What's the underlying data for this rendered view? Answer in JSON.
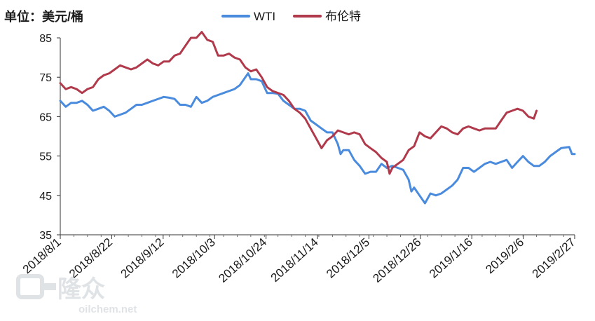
{
  "chart_data": {
    "type": "line",
    "unit_label": "单位：美元/桶",
    "x_tick_labels": [
      "2018/8/1",
      "2018/8/22",
      "2018/9/12",
      "2018/10/3",
      "2018/10/24",
      "2018/11/14",
      "2018/12/5",
      "2018/12/26",
      "2019/1/16",
      "2019/2/6",
      "2019/2/27"
    ],
    "y_ticks": [
      35,
      45,
      55,
      65,
      75,
      85
    ],
    "ylim": [
      35,
      85
    ],
    "grid": false,
    "legend_position": "top",
    "series": [
      {
        "name": "WTI",
        "color": "#4a8bdd",
        "points": [
          [
            0,
            69
          ],
          [
            2,
            67.5
          ],
          [
            4,
            68.5
          ],
          [
            6,
            68.5
          ],
          [
            8,
            69
          ],
          [
            10,
            68
          ],
          [
            12,
            66.5
          ],
          [
            14,
            67
          ],
          [
            16,
            67.5
          ],
          [
            18,
            66.5
          ],
          [
            20,
            65
          ],
          [
            22,
            65.5
          ],
          [
            24,
            66
          ],
          [
            26,
            67
          ],
          [
            28,
            68
          ],
          [
            30,
            68
          ],
          [
            32,
            68.5
          ],
          [
            34,
            69
          ],
          [
            36,
            69.5
          ],
          [
            38,
            70
          ],
          [
            40,
            69.8
          ],
          [
            42,
            69.5
          ],
          [
            44,
            68
          ],
          [
            46,
            68
          ],
          [
            48,
            67.5
          ],
          [
            50,
            70
          ],
          [
            52,
            68.5
          ],
          [
            54,
            69
          ],
          [
            56,
            70
          ],
          [
            58,
            70.5
          ],
          [
            60,
            71
          ],
          [
            62,
            71.5
          ],
          [
            64,
            72
          ],
          [
            66,
            73
          ],
          [
            68,
            75
          ],
          [
            69,
            76
          ],
          [
            70,
            74.5
          ],
          [
            72,
            74.5
          ],
          [
            74,
            74
          ],
          [
            76,
            71
          ],
          [
            78,
            71
          ],
          [
            80,
            70.8
          ],
          [
            82,
            69
          ],
          [
            84,
            68
          ],
          [
            86,
            67
          ],
          [
            88,
            67
          ],
          [
            90,
            66.5
          ],
          [
            92,
            64
          ],
          [
            94,
            63
          ],
          [
            96,
            62
          ],
          [
            98,
            61
          ],
          [
            100,
            61
          ],
          [
            102,
            58
          ],
          [
            103,
            55.5
          ],
          [
            104,
            56.5
          ],
          [
            106,
            56.5
          ],
          [
            108,
            54
          ],
          [
            110,
            52.5
          ],
          [
            112,
            50.5
          ],
          [
            114,
            51
          ],
          [
            116,
            51
          ],
          [
            118,
            53
          ],
          [
            120,
            52
          ],
          [
            122,
            52.5
          ],
          [
            124,
            52
          ],
          [
            126,
            51.5
          ],
          [
            128,
            49
          ],
          [
            129,
            46
          ],
          [
            130,
            47
          ],
          [
            132,
            45
          ],
          [
            134,
            43
          ],
          [
            136,
            45.5
          ],
          [
            138,
            45
          ],
          [
            140,
            45.5
          ],
          [
            142,
            46.5
          ],
          [
            144,
            47.5
          ],
          [
            146,
            49
          ],
          [
            148,
            52
          ],
          [
            150,
            52
          ],
          [
            152,
            51
          ],
          [
            154,
            52
          ],
          [
            156,
            53
          ],
          [
            158,
            53.5
          ],
          [
            160,
            53
          ],
          [
            162,
            53.5
          ],
          [
            164,
            54
          ],
          [
            166,
            52
          ],
          [
            168,
            53.5
          ],
          [
            170,
            55
          ],
          [
            172,
            53.5
          ],
          [
            174,
            52.5
          ],
          [
            176,
            52.5
          ],
          [
            178,
            53.5
          ],
          [
            180,
            55
          ],
          [
            182,
            56
          ],
          [
            184,
            57
          ],
          [
            186,
            57.2
          ],
          [
            187,
            57.3
          ],
          [
            188,
            55.5
          ],
          [
            189,
            55.5
          ]
        ]
      },
      {
        "name": "布伦特",
        "color": "#b03a4b",
        "points": [
          [
            0,
            73.5
          ],
          [
            2,
            72
          ],
          [
            4,
            72.5
          ],
          [
            6,
            72
          ],
          [
            8,
            71
          ],
          [
            10,
            72
          ],
          [
            12,
            72.5
          ],
          [
            14,
            74.5
          ],
          [
            16,
            75.5
          ],
          [
            18,
            76
          ],
          [
            20,
            77
          ],
          [
            22,
            78
          ],
          [
            24,
            77.5
          ],
          [
            26,
            77
          ],
          [
            28,
            77.5
          ],
          [
            30,
            78.5
          ],
          [
            32,
            79.5
          ],
          [
            34,
            78.5
          ],
          [
            36,
            78
          ],
          [
            38,
            79
          ],
          [
            40,
            79
          ],
          [
            42,
            80.5
          ],
          [
            44,
            81
          ],
          [
            46,
            83
          ],
          [
            48,
            85
          ],
          [
            50,
            85
          ],
          [
            52,
            86.5
          ],
          [
            54,
            84.5
          ],
          [
            56,
            84
          ],
          [
            58,
            80.5
          ],
          [
            60,
            80.5
          ],
          [
            62,
            81
          ],
          [
            64,
            80
          ],
          [
            66,
            79.5
          ],
          [
            68,
            77.5
          ],
          [
            70,
            76.5
          ],
          [
            72,
            77
          ],
          [
            74,
            75
          ],
          [
            76,
            72.5
          ],
          [
            78,
            71.5
          ],
          [
            80,
            71
          ],
          [
            82,
            70.5
          ],
          [
            84,
            69
          ],
          [
            86,
            67
          ],
          [
            88,
            66
          ],
          [
            90,
            64.5
          ],
          [
            92,
            62
          ],
          [
            94,
            59.5
          ],
          [
            96,
            57
          ],
          [
            98,
            59
          ],
          [
            100,
            60
          ],
          [
            102,
            61.5
          ],
          [
            104,
            61
          ],
          [
            106,
            60.5
          ],
          [
            108,
            61
          ],
          [
            110,
            60.5
          ],
          [
            112,
            58
          ],
          [
            114,
            57
          ],
          [
            116,
            56
          ],
          [
            118,
            54.5
          ],
          [
            120,
            53.5
          ],
          [
            121,
            50.5
          ],
          [
            122,
            52
          ],
          [
            124,
            53
          ],
          [
            126,
            54
          ],
          [
            128,
            56.5
          ],
          [
            130,
            57.5
          ],
          [
            132,
            61
          ],
          [
            134,
            60
          ],
          [
            136,
            59.5
          ],
          [
            138,
            61
          ],
          [
            140,
            62.5
          ],
          [
            142,
            62
          ],
          [
            144,
            61
          ],
          [
            146,
            60.5
          ],
          [
            148,
            62
          ],
          [
            150,
            62.5
          ],
          [
            152,
            62
          ],
          [
            154,
            61.5
          ],
          [
            156,
            62
          ],
          [
            158,
            62
          ],
          [
            160,
            62
          ],
          [
            162,
            64
          ],
          [
            164,
            66
          ],
          [
            166,
            66.5
          ],
          [
            168,
            67
          ],
          [
            170,
            66.5
          ],
          [
            172,
            65
          ],
          [
            174,
            64.5
          ],
          [
            175,
            66.5
          ]
        ]
      }
    ]
  },
  "watermark": {
    "brand": "隆众",
    "url": "oilchem.net"
  }
}
